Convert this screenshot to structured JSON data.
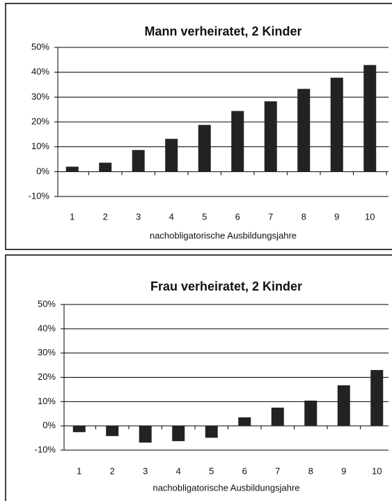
{
  "chart_data": [
    {
      "type": "bar",
      "title": "Mann verheiratet, 2 Kinder",
      "x_label": "nachobligatorische Ausbildungsjahre",
      "categories": [
        "1",
        "2",
        "3",
        "4",
        "5",
        "6",
        "7",
        "8",
        "9",
        "10"
      ],
      "values": [
        2,
        3.6,
        8.7,
        13.2,
        18.8,
        24.4,
        28.3,
        33.3,
        37.8,
        42.9
      ],
      "color": "#222222",
      "ylim": [
        -10,
        50
      ],
      "yticks": [
        {
          "value": -10,
          "label": "-10%"
        },
        {
          "value": 0,
          "label": "0%"
        },
        {
          "value": 10,
          "label": "10%"
        },
        {
          "value": 20,
          "label": "20%"
        },
        {
          "value": 30,
          "label": "30%"
        },
        {
          "value": 40,
          "label": "40%"
        },
        {
          "value": 50,
          "label": "50%"
        }
      ],
      "grid": true
    },
    {
      "type": "bar",
      "title": "Frau verheiratet, 2 Kinder",
      "x_label": "nachobligatorische Ausbildungsjahre",
      "categories": [
        "1",
        "2",
        "3",
        "4",
        "5",
        "6",
        "7",
        "8",
        "9",
        "10"
      ],
      "values": [
        -2.6,
        -4.2,
        -6.9,
        -6.3,
        -4.9,
        3.5,
        7.5,
        10.4,
        16.7,
        23
      ],
      "color": "#222222",
      "ylim": [
        -10,
        50
      ],
      "yticks": [
        {
          "value": -10,
          "label": "-10%"
        },
        {
          "value": 0,
          "label": "0%"
        },
        {
          "value": 10,
          "label": "10%"
        },
        {
          "value": 20,
          "label": "20%"
        },
        {
          "value": 30,
          "label": "30%"
        },
        {
          "value": 40,
          "label": "40%"
        },
        {
          "value": 50,
          "label": "50%"
        }
      ],
      "grid": true
    }
  ]
}
